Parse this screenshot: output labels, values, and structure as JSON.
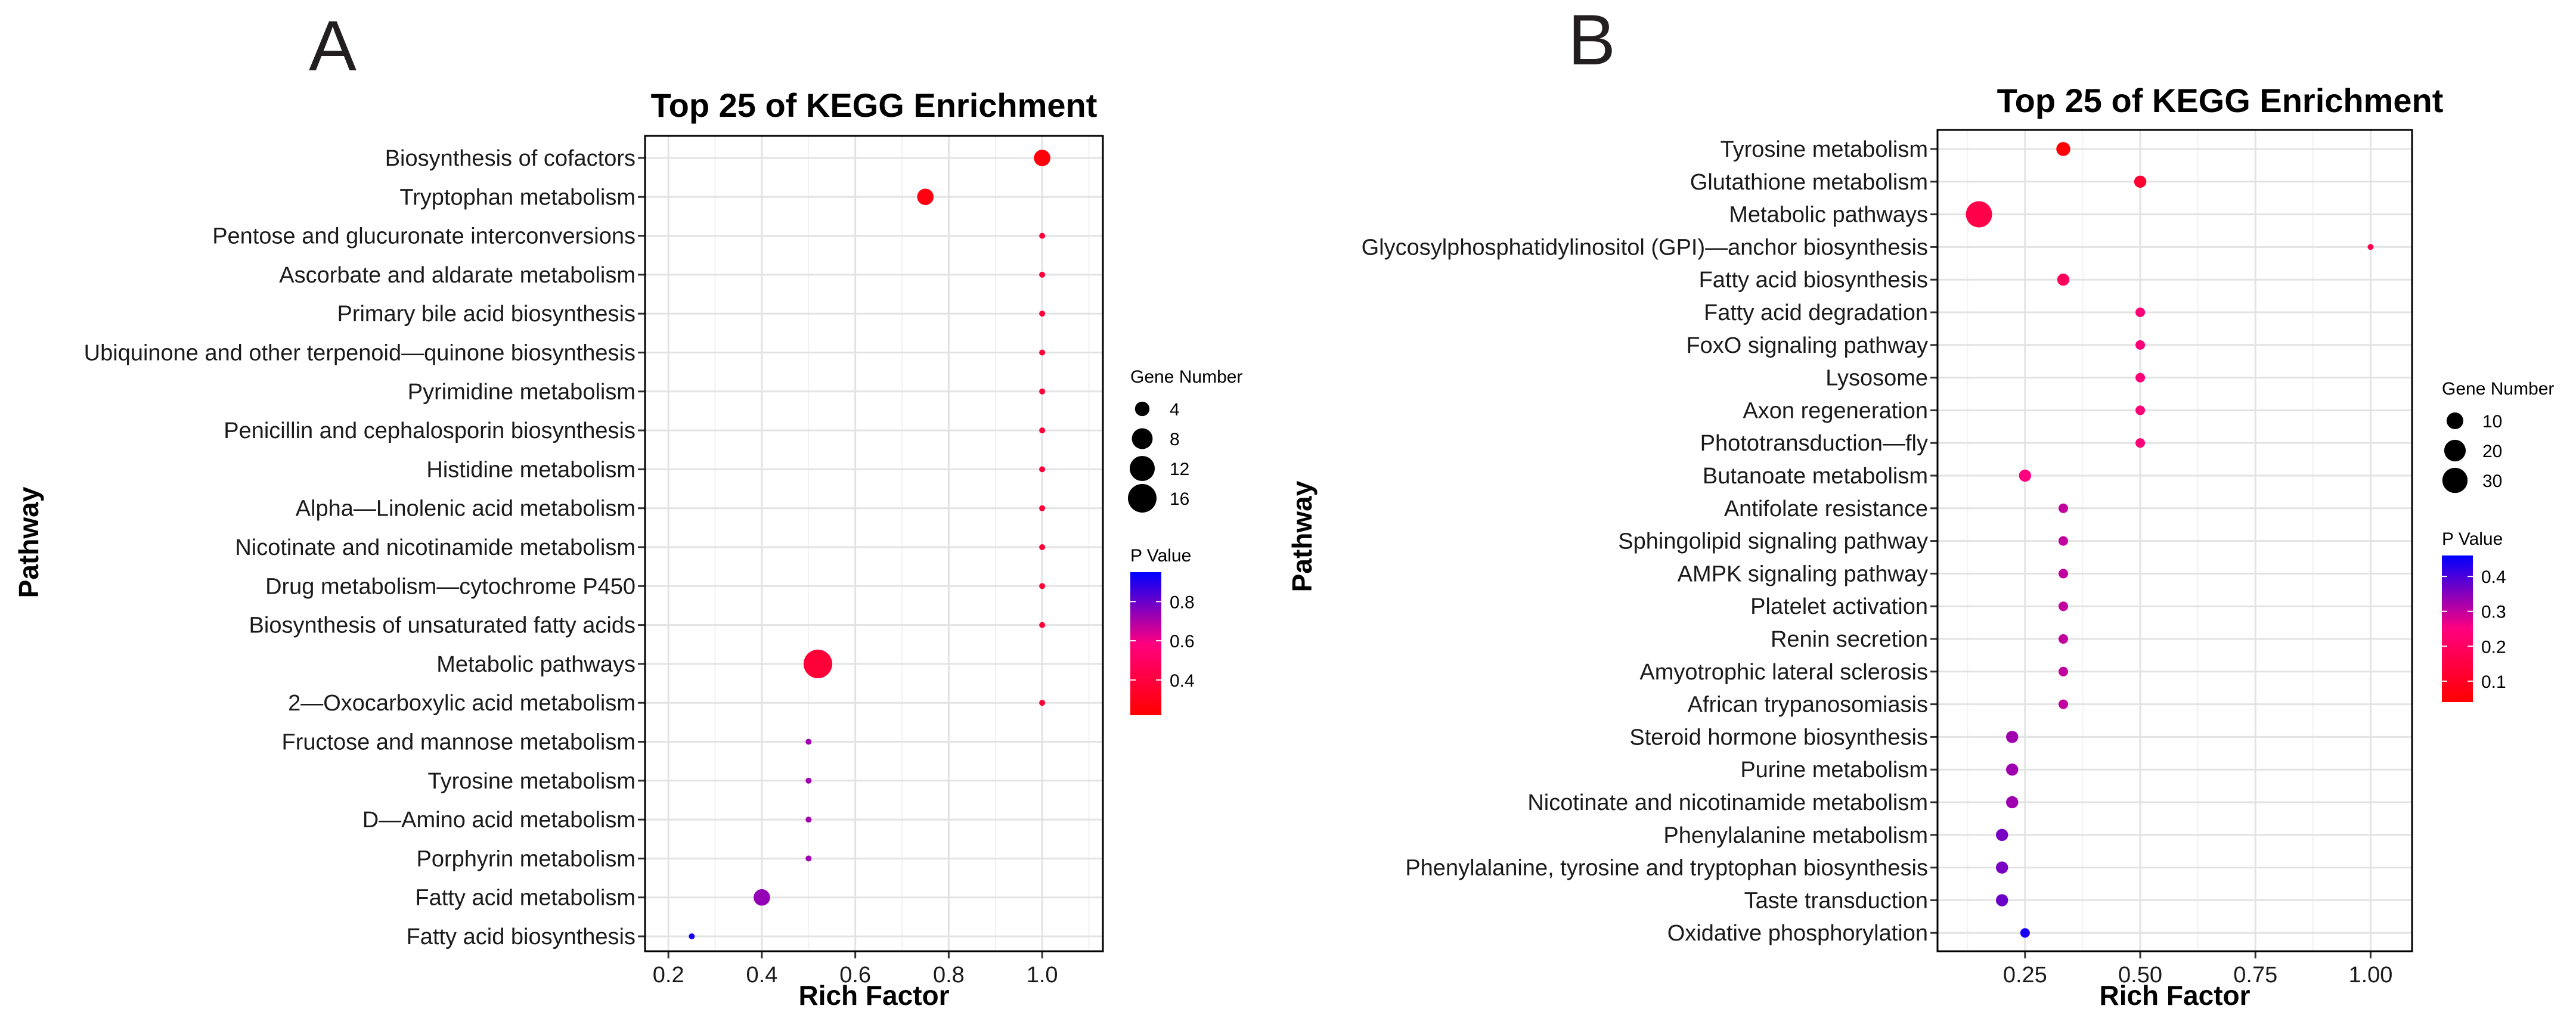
{
  "chart_data": [
    {
      "panel": "A",
      "type": "scatter",
      "title": "Top 25 of KEGG Enrichment",
      "xlabel": "Rich Factor",
      "ylabel": "Pathway",
      "xlim": [
        0.15,
        1.13
      ],
      "xticks": [
        0.2,
        0.4,
        0.6,
        0.8,
        1.0
      ],
      "xtick_labels": [
        "0.2",
        "0.4",
        "0.6",
        "0.8",
        "1.0"
      ],
      "categories": [
        "Biosynthesis of cofactors",
        "Tryptophan metabolism",
        "Pentose and glucuronate interconversions",
        "Ascorbate and aldarate metabolism",
        "Primary bile acid biosynthesis",
        "Ubiquinone and other terpenoid—quinone biosynthesis",
        "Pyrimidine metabolism",
        "Penicillin and cephalosporin biosynthesis",
        "Histidine metabolism",
        "Alpha—Linolenic acid metabolism",
        "Nicotinate and nicotinamide metabolism",
        "Drug metabolism—cytochrome P450",
        "Biosynthesis of unsaturated fatty acids",
        "Metabolic pathways",
        "2—Oxocarboxylic acid metabolism",
        "Fructose and mannose metabolism",
        "Tyrosine metabolism",
        "D—Amino acid metabolism",
        "Porphyrin metabolism",
        "Fatty acid metabolism",
        "Fatty acid biosynthesis"
      ],
      "rich_factor": [
        1.0,
        0.75,
        1.0,
        1.0,
        1.0,
        1.0,
        1.0,
        1.0,
        1.0,
        1.0,
        1.0,
        1.0,
        1.0,
        0.52,
        1.0,
        0.5,
        0.5,
        0.5,
        0.5,
        0.4,
        0.25
      ],
      "gene_number": [
        5,
        5,
        2,
        2,
        2,
        2,
        2,
        2,
        2,
        2,
        2,
        2,
        2,
        16,
        2,
        2,
        2,
        2,
        2,
        5,
        2
      ],
      "p_value": [
        0.25,
        0.27,
        0.38,
        0.38,
        0.38,
        0.38,
        0.38,
        0.38,
        0.38,
        0.38,
        0.38,
        0.38,
        0.38,
        0.38,
        0.38,
        0.72,
        0.72,
        0.72,
        0.72,
        0.74,
        0.92
      ],
      "size_legend": {
        "title": "Gene Number",
        "values": [
          4,
          8,
          12,
          16
        ],
        "labels": [
          "4",
          "8",
          "12",
          "16"
        ],
        "range": [
          2,
          16
        ]
      },
      "color_legend": {
        "title": "P Value",
        "range": [
          0.22,
          0.95
        ],
        "ticks": [
          0.4,
          0.6,
          0.8
        ],
        "tick_labels": [
          "0.4",
          "0.6",
          "0.8"
        ],
        "low_color": "#ff0000",
        "high_color": "#0000ff"
      }
    },
    {
      "panel": "B",
      "type": "scatter",
      "title": "Top 25 of KEGG Enrichment",
      "xlabel": "Rich Factor",
      "ylabel": "Pathway",
      "xlim": [
        0.06,
        1.09
      ],
      "xticks": [
        0.25,
        0.5,
        0.75,
        1.0
      ],
      "xtick_labels": [
        "0.25",
        "0.50",
        "0.75",
        "1.00"
      ],
      "categories": [
        "Tyrosine metabolism",
        "Glutathione metabolism",
        "Metabolic pathways",
        "Glycosylphosphatidylinositol (GPI)—anchor biosynthesis",
        "Fatty acid biosynthesis",
        "Fatty acid degradation",
        "FoxO signaling pathway",
        "Lysosome",
        "Axon regeneration",
        "Phototransduction—fly",
        "Butanoate metabolism",
        "Antifolate resistance",
        "Sphingolipid signaling pathway",
        "AMPK signaling pathway",
        "Platelet activation",
        "Renin secretion",
        "Amyotrophic lateral sclerosis",
        "African trypanosomiasis",
        "Steroid hormone biosynthesis",
        "Purine metabolism",
        "Nicotinate and nicotinamide metabolism",
        "Phenylalanine metabolism",
        "Phenylalanine, tyrosine and tryptophan biosynthesis",
        "Taste transduction",
        "Oxidative phosphorylation"
      ],
      "rich_factor": [
        0.333,
        0.5,
        0.15,
        1.0,
        0.333,
        0.5,
        0.5,
        0.5,
        0.5,
        0.5,
        0.25,
        0.333,
        0.333,
        0.333,
        0.333,
        0.333,
        0.333,
        0.333,
        0.222,
        0.222,
        0.222,
        0.2,
        0.2,
        0.2,
        0.25
      ],
      "gene_number": [
        6,
        4,
        33,
        1,
        4,
        2,
        2,
        2,
        2,
        2,
        4,
        2,
        2,
        2,
        2,
        2,
        2,
        2,
        4,
        4,
        4,
        4,
        4,
        4,
        2
      ],
      "p_value": [
        0.05,
        0.12,
        0.16,
        0.17,
        0.19,
        0.24,
        0.24,
        0.24,
        0.24,
        0.24,
        0.25,
        0.3,
        0.3,
        0.3,
        0.3,
        0.3,
        0.3,
        0.3,
        0.33,
        0.33,
        0.33,
        0.36,
        0.36,
        0.37,
        0.44
      ],
      "size_legend": {
        "title": "Gene Number",
        "values": [
          10,
          20,
          30
        ],
        "labels": [
          "10",
          "20",
          "30"
        ],
        "range": [
          1,
          33
        ]
      },
      "color_legend": {
        "title": "P Value",
        "range": [
          0.04,
          0.46
        ],
        "ticks": [
          0.1,
          0.2,
          0.3,
          0.4
        ],
        "tick_labels": [
          "0.1",
          "0.2",
          "0.3",
          "0.4"
        ],
        "low_color": "#ff0000",
        "high_color": "#0000ff"
      }
    }
  ],
  "panel_letters": [
    "A",
    "B"
  ]
}
